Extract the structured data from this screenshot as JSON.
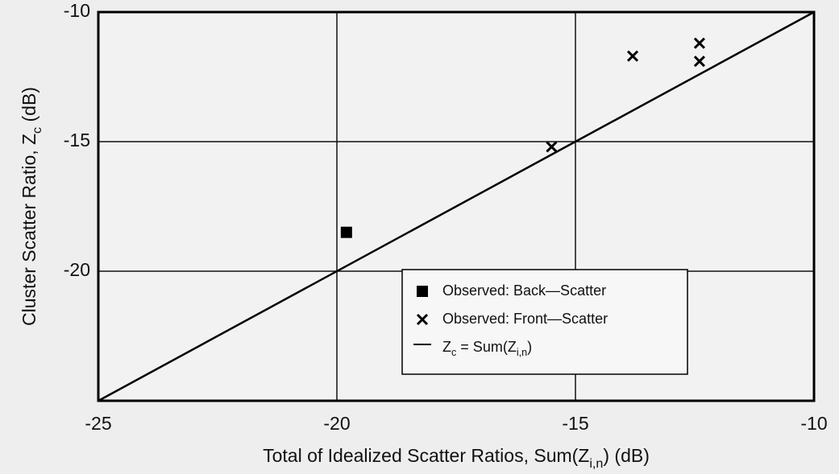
{
  "chart_data": {
    "type": "scatter",
    "x_label": [
      {
        "text": "Total of Idealized Scatter Ratios, Sum(Z"
      },
      {
        "text": "i,n",
        "sub": true
      },
      {
        "text": ") (dB)"
      }
    ],
    "y_label": [
      {
        "text": "Cluster Scatter Ratio, Z"
      },
      {
        "text": "c",
        "sub": true
      },
      {
        "text": " (dB)"
      }
    ],
    "xlim": [
      -25,
      -10
    ],
    "xticks": [
      -25,
      -20,
      -15,
      -10
    ],
    "ylim": [
      -25,
      -10
    ],
    "yticks": [
      -20,
      -15,
      -10
    ],
    "grid": true,
    "legend": "lower right",
    "series": [
      {
        "name": "Observed: Back—Scatter",
        "marker": "square",
        "color": "#000000",
        "x": [
          -19.8
        ],
        "values": [
          -18.5
        ]
      },
      {
        "name": "Observed: Front—Scatter",
        "marker": "x",
        "color": "#000000",
        "x": [
          -15.5,
          -13.8,
          -12.4,
          -12.4
        ],
        "values": [
          -15.2,
          -11.7,
          -11.2,
          -11.9
        ]
      },
      {
        "name": [
          {
            "text": "Z"
          },
          {
            "text": "c",
            "sub": true
          },
          {
            "text": " = Sum(Z"
          },
          {
            "text": "i,n",
            "sub": true
          },
          {
            "text": ")"
          }
        ],
        "type": "line",
        "color": "#000000",
        "x": [
          -25,
          -10
        ],
        "values": [
          -25,
          -10
        ]
      }
    ]
  }
}
